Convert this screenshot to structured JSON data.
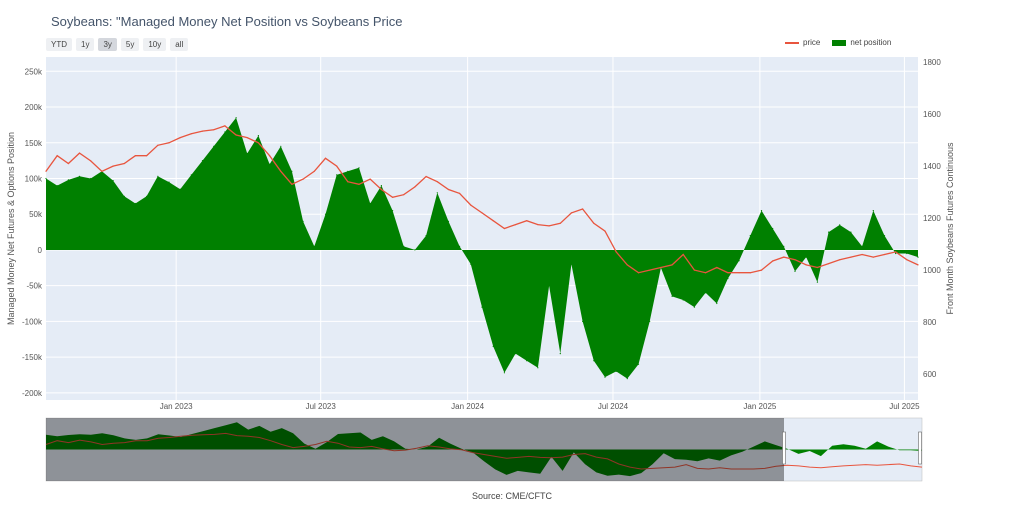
{
  "title": "Soybeans: \"Managed Money Net Position vs Soybeans Price",
  "range_buttons": [
    {
      "label": "YTD",
      "active": false
    },
    {
      "label": "1y",
      "active": false
    },
    {
      "label": "3y",
      "active": true
    },
    {
      "label": "5y",
      "active": false
    },
    {
      "label": "10y",
      "active": false
    },
    {
      "label": "all",
      "active": false
    }
  ],
  "legend": {
    "price": "price",
    "net_position": "net position"
  },
  "source": "Source: CME/CFTC",
  "colors": {
    "price": "#e8553e",
    "net_position": "#008000",
    "plot_bg": "#e5ecf6"
  },
  "chart_data": {
    "type": "line",
    "xlabel": "",
    "y1label": "Managed Money Net Futures & Options Position",
    "y2label": "Front Month Soybeans Futures Continuous",
    "y1lim": [
      -210000,
      270000
    ],
    "y2lim": [
      500,
      1820
    ],
    "y1ticks": [
      "250k",
      "200k",
      "150k",
      "100k",
      "50k",
      "0",
      "-50k",
      "-100k",
      "-150k",
      "-200k"
    ],
    "y1tick_values": [
      250000,
      200000,
      150000,
      100000,
      50000,
      0,
      -50000,
      -100000,
      -150000,
      -200000
    ],
    "y2ticks": [
      "1800",
      "1600",
      "1400",
      "1200",
      "1000",
      "800",
      "600"
    ],
    "y2tick_values": [
      1800,
      1600,
      1400,
      1200,
      1000,
      800,
      600
    ],
    "xticks": [
      "Jan 2023",
      "Jul 2023",
      "Jan 2024",
      "Jul 2024",
      "Jan 2025",
      "Jul 2025"
    ],
    "xtick_values": [
      "2023-01-01",
      "2023-07-01",
      "2024-01-01",
      "2024-07-01",
      "2025-01-01",
      "2025-07-01"
    ],
    "xlim": [
      "2022-07-22",
      "2025-07-18"
    ],
    "grid": true,
    "legend_position": "top-right",
    "series": [
      {
        "name": "net position",
        "type": "area",
        "points": [
          [
            "2022-07-22",
            100000
          ],
          [
            "2022-08-05",
            90000
          ],
          [
            "2022-08-19",
            98000
          ],
          [
            "2022-09-02",
            103000
          ],
          [
            "2022-09-16",
            100000
          ],
          [
            "2022-09-30",
            110000
          ],
          [
            "2022-10-14",
            97000
          ],
          [
            "2022-10-28",
            75000
          ],
          [
            "2022-11-11",
            65000
          ],
          [
            "2022-11-25",
            75000
          ],
          [
            "2022-12-09",
            103000
          ],
          [
            "2022-12-23",
            95000
          ],
          [
            "2023-01-06",
            85000
          ],
          [
            "2023-01-20",
            105000
          ],
          [
            "2023-02-03",
            125000
          ],
          [
            "2023-02-17",
            145000
          ],
          [
            "2023-03-03",
            165000
          ],
          [
            "2023-03-17",
            185000
          ],
          [
            "2023-03-31",
            135000
          ],
          [
            "2023-04-14",
            160000
          ],
          [
            "2023-04-28",
            120000
          ],
          [
            "2023-05-12",
            145000
          ],
          [
            "2023-05-26",
            110000
          ],
          [
            "2023-06-09",
            40000
          ],
          [
            "2023-06-23",
            5000
          ],
          [
            "2023-07-07",
            50000
          ],
          [
            "2023-07-21",
            105000
          ],
          [
            "2023-08-04",
            110000
          ],
          [
            "2023-08-18",
            115000
          ],
          [
            "2023-09-01",
            65000
          ],
          [
            "2023-09-15",
            90000
          ],
          [
            "2023-09-29",
            55000
          ],
          [
            "2023-10-13",
            5000
          ],
          [
            "2023-10-27",
            0
          ],
          [
            "2023-11-10",
            20000
          ],
          [
            "2023-11-24",
            80000
          ],
          [
            "2023-12-08",
            40000
          ],
          [
            "2023-12-22",
            5000
          ],
          [
            "2024-01-05",
            -20000
          ],
          [
            "2024-01-19",
            -80000
          ],
          [
            "2024-02-02",
            -135000
          ],
          [
            "2024-02-16",
            -172000
          ],
          [
            "2024-03-01",
            -145000
          ],
          [
            "2024-03-15",
            -155000
          ],
          [
            "2024-03-29",
            -165000
          ],
          [
            "2024-04-12",
            -50000
          ],
          [
            "2024-04-26",
            -145000
          ],
          [
            "2024-05-10",
            -20000
          ],
          [
            "2024-05-24",
            -100000
          ],
          [
            "2024-06-07",
            -155000
          ],
          [
            "2024-06-21",
            -178000
          ],
          [
            "2024-07-05",
            -170000
          ],
          [
            "2024-07-19",
            -180000
          ],
          [
            "2024-08-02",
            -160000
          ],
          [
            "2024-08-16",
            -100000
          ],
          [
            "2024-08-30",
            -25000
          ],
          [
            "2024-09-13",
            -65000
          ],
          [
            "2024-09-27",
            -70000
          ],
          [
            "2024-10-11",
            -80000
          ],
          [
            "2024-10-25",
            -60000
          ],
          [
            "2024-11-08",
            -75000
          ],
          [
            "2024-11-22",
            -40000
          ],
          [
            "2024-12-06",
            -15000
          ],
          [
            "2024-12-20",
            20000
          ],
          [
            "2025-01-03",
            55000
          ],
          [
            "2025-01-17",
            30000
          ],
          [
            "2025-01-31",
            5000
          ],
          [
            "2025-02-14",
            -30000
          ],
          [
            "2025-02-28",
            -10000
          ],
          [
            "2025-03-14",
            -45000
          ],
          [
            "2025-03-28",
            25000
          ],
          [
            "2025-04-11",
            35000
          ],
          [
            "2025-04-25",
            25000
          ],
          [
            "2025-05-09",
            5000
          ],
          [
            "2025-05-23",
            55000
          ],
          [
            "2025-06-06",
            20000
          ],
          [
            "2025-06-20",
            -5000
          ],
          [
            "2025-07-04",
            -5000
          ],
          [
            "2025-07-18",
            -10000
          ]
        ]
      },
      {
        "name": "price",
        "type": "line",
        "points": [
          [
            "2022-07-22",
            1380
          ],
          [
            "2022-08-05",
            1440
          ],
          [
            "2022-08-19",
            1410
          ],
          [
            "2022-09-02",
            1450
          ],
          [
            "2022-09-16",
            1420
          ],
          [
            "2022-09-30",
            1380
          ],
          [
            "2022-10-14",
            1400
          ],
          [
            "2022-10-28",
            1410
          ],
          [
            "2022-11-11",
            1440
          ],
          [
            "2022-11-25",
            1440
          ],
          [
            "2022-12-09",
            1480
          ],
          [
            "2022-12-23",
            1490
          ],
          [
            "2023-01-06",
            1510
          ],
          [
            "2023-01-20",
            1525
          ],
          [
            "2023-02-03",
            1535
          ],
          [
            "2023-02-17",
            1540
          ],
          [
            "2023-03-03",
            1555
          ],
          [
            "2023-03-17",
            1520
          ],
          [
            "2023-03-31",
            1510
          ],
          [
            "2023-04-14",
            1490
          ],
          [
            "2023-04-28",
            1440
          ],
          [
            "2023-05-12",
            1380
          ],
          [
            "2023-05-26",
            1330
          ],
          [
            "2023-06-09",
            1350
          ],
          [
            "2023-06-23",
            1380
          ],
          [
            "2023-07-07",
            1430
          ],
          [
            "2023-07-21",
            1400
          ],
          [
            "2023-08-04",
            1340
          ],
          [
            "2023-08-18",
            1330
          ],
          [
            "2023-09-01",
            1350
          ],
          [
            "2023-09-15",
            1310
          ],
          [
            "2023-09-29",
            1280
          ],
          [
            "2023-10-13",
            1290
          ],
          [
            "2023-10-27",
            1320
          ],
          [
            "2023-11-10",
            1360
          ],
          [
            "2023-11-24",
            1340
          ],
          [
            "2023-12-08",
            1310
          ],
          [
            "2023-12-22",
            1295
          ],
          [
            "2024-01-05",
            1250
          ],
          [
            "2024-01-19",
            1220
          ],
          [
            "2024-02-02",
            1190
          ],
          [
            "2024-02-16",
            1160
          ],
          [
            "2024-03-01",
            1175
          ],
          [
            "2024-03-15",
            1190
          ],
          [
            "2024-03-29",
            1175
          ],
          [
            "2024-04-12",
            1170
          ],
          [
            "2024-04-26",
            1180
          ],
          [
            "2024-05-10",
            1220
          ],
          [
            "2024-05-24",
            1235
          ],
          [
            "2024-06-07",
            1180
          ],
          [
            "2024-06-21",
            1150
          ],
          [
            "2024-07-05",
            1070
          ],
          [
            "2024-07-19",
            1020
          ],
          [
            "2024-08-02",
            990
          ],
          [
            "2024-08-16",
            1000
          ],
          [
            "2024-08-30",
            1010
          ],
          [
            "2024-09-13",
            1020
          ],
          [
            "2024-09-27",
            1060
          ],
          [
            "2024-10-11",
            1000
          ],
          [
            "2024-10-25",
            990
          ],
          [
            "2024-11-08",
            1010
          ],
          [
            "2024-11-22",
            990
          ],
          [
            "2024-12-06",
            990
          ],
          [
            "2024-12-20",
            990
          ],
          [
            "2025-01-03",
            1000
          ],
          [
            "2025-01-17",
            1035
          ],
          [
            "2025-01-31",
            1050
          ],
          [
            "2025-02-14",
            1040
          ],
          [
            "2025-02-28",
            1020
          ],
          [
            "2025-03-14",
            1010
          ],
          [
            "2025-03-28",
            1025
          ],
          [
            "2025-04-11",
            1040
          ],
          [
            "2025-04-25",
            1050
          ],
          [
            "2025-05-09",
            1060
          ],
          [
            "2025-05-23",
            1050
          ],
          [
            "2025-06-06",
            1060
          ],
          [
            "2025-06-20",
            1070
          ],
          [
            "2025-07-04",
            1040
          ],
          [
            "2025-07-18",
            1020
          ]
        ]
      }
    ]
  }
}
